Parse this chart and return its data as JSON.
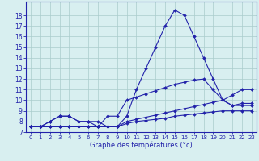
{
  "x": [
    0,
    1,
    2,
    3,
    4,
    5,
    6,
    7,
    8,
    9,
    10,
    11,
    12,
    13,
    14,
    15,
    16,
    17,
    18,
    19,
    20,
    21,
    22,
    23
  ],
  "line1": [
    7.5,
    7.5,
    8.0,
    8.5,
    8.5,
    8.0,
    8.0,
    8.0,
    7.5,
    7.5,
    8.5,
    11.0,
    13.0,
    15.0,
    17.0,
    18.5,
    18.0,
    16.0,
    14.0,
    12.0,
    10.0,
    9.5,
    9.5,
    9.5
  ],
  "line2": [
    7.5,
    7.5,
    8.0,
    8.5,
    8.5,
    8.0,
    8.0,
    7.5,
    8.5,
    8.5,
    10.0,
    10.3,
    10.6,
    10.9,
    11.2,
    11.5,
    11.7,
    11.9,
    12.0,
    11.0,
    10.0,
    9.5,
    9.7,
    9.7
  ],
  "line3": [
    7.5,
    7.5,
    7.5,
    7.5,
    7.5,
    7.5,
    7.5,
    7.5,
    7.5,
    7.5,
    8.0,
    8.2,
    8.4,
    8.6,
    8.8,
    9.0,
    9.2,
    9.4,
    9.6,
    9.8,
    10.0,
    10.5,
    11.0,
    11.0
  ],
  "line4": [
    7.5,
    7.5,
    7.5,
    7.5,
    7.5,
    7.5,
    7.5,
    7.5,
    7.5,
    7.5,
    7.8,
    8.0,
    8.1,
    8.2,
    8.3,
    8.5,
    8.6,
    8.7,
    8.8,
    8.9,
    9.0,
    9.0,
    9.0,
    9.0
  ],
  "line_color": "#2222aa",
  "bg_color": "#d8eff0",
  "grid_color": "#aacccc",
  "xlabel": "Graphe des températures (°c)",
  "ylim": [
    7,
    19
  ],
  "xlim": [
    -0.5,
    23.5
  ],
  "yticks": [
    7,
    8,
    9,
    10,
    11,
    12,
    13,
    14,
    15,
    16,
    17,
    18
  ],
  "xticks": [
    0,
    1,
    2,
    3,
    4,
    5,
    6,
    7,
    8,
    9,
    10,
    11,
    12,
    13,
    14,
    15,
    16,
    17,
    18,
    19,
    20,
    21,
    22,
    23
  ]
}
